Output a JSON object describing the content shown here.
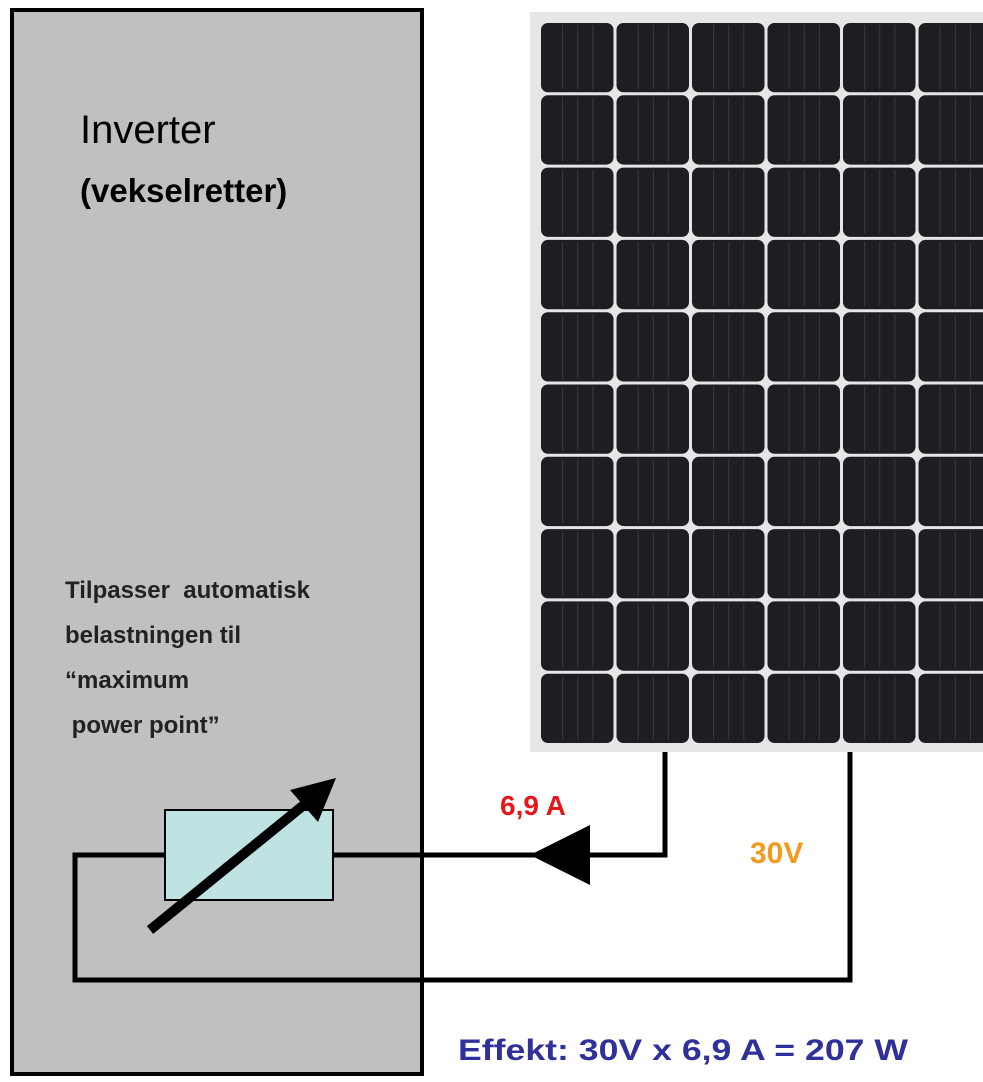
{
  "title": "Inverter",
  "subtitle": "(vekselretter)",
  "note": [
    "Tilpasser  automatisk",
    "belastningen til",
    "“maximum",
    " power point”"
  ],
  "current": "6,9 A",
  "voltage": "30V",
  "power": "Effekt: 30V x 6,9 A = 207 W"
}
